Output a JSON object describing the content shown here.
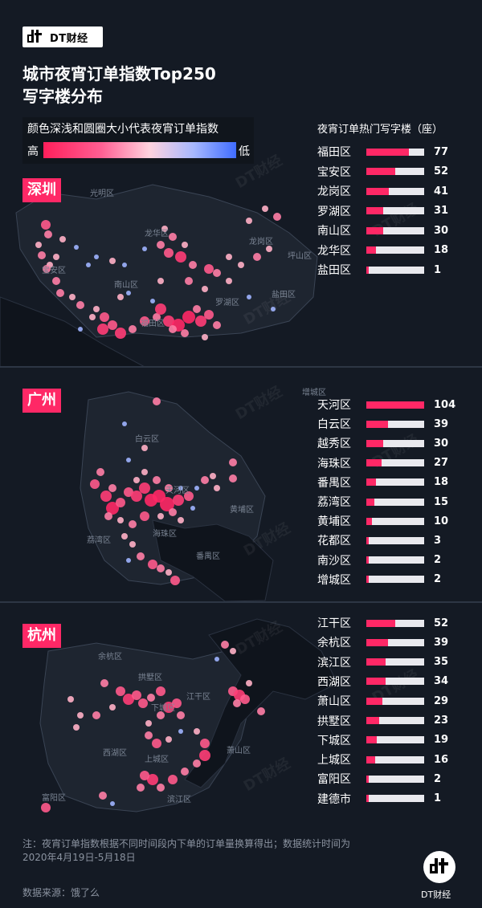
{
  "brand": {
    "logo_text": "DT财经",
    "bottom_text": "DT财经",
    "watermark": "DT财经"
  },
  "title": "城市夜宵订单指数Top250\n写字楼分布",
  "legend": {
    "title": "颜色深浅和圆圈大小代表夜宵订单指数",
    "high": "高",
    "low": "低"
  },
  "bars_title": "夜宵订单热门写字楼（座）",
  "colors": {
    "accent": "#ff2866",
    "background": "#141a24",
    "bar_track": "#e9e9ee"
  },
  "cities": [
    {
      "name": "深圳",
      "map_labels": [
        "光明区",
        "龙华区",
        "宝安区",
        "南山区",
        "福田区",
        "罗湖区",
        "龙岗区",
        "坪山区",
        "盐田区"
      ],
      "districts": [
        {
          "name": "福田区",
          "count": 77
        },
        {
          "name": "宝安区",
          "count": 52
        },
        {
          "name": "龙岗区",
          "count": 41
        },
        {
          "name": "罗湖区",
          "count": 31
        },
        {
          "name": "南山区",
          "count": 30
        },
        {
          "name": "龙华区",
          "count": 18
        },
        {
          "name": "盐田区",
          "count": 1
        }
      ]
    },
    {
      "name": "广州",
      "map_labels": [
        "增城区",
        "白云区",
        "天河区",
        "黄埔区",
        "荔湾区",
        "海珠区",
        "番禺区"
      ],
      "districts": [
        {
          "name": "天河区",
          "count": 104
        },
        {
          "name": "白云区",
          "count": 39
        },
        {
          "name": "越秀区",
          "count": 30
        },
        {
          "name": "海珠区",
          "count": 27
        },
        {
          "name": "番禺区",
          "count": 18
        },
        {
          "name": "荔湾区",
          "count": 15
        },
        {
          "name": "黄埔区",
          "count": 10
        },
        {
          "name": "花都区",
          "count": 3
        },
        {
          "name": "南沙区",
          "count": 2
        },
        {
          "name": "增城区",
          "count": 2
        }
      ]
    },
    {
      "name": "杭州",
      "map_labels": [
        "余杭区",
        "拱墅区",
        "江干区",
        "下城区",
        "西湖区",
        "萧山区",
        "上城区",
        "滨江区",
        "富阳区"
      ],
      "districts": [
        {
          "name": "江干区",
          "count": 52
        },
        {
          "name": "余杭区",
          "count": 39
        },
        {
          "name": "滨江区",
          "count": 35
        },
        {
          "name": "西湖区",
          "count": 34
        },
        {
          "name": "萧山区",
          "count": 29
        },
        {
          "name": "拱墅区",
          "count": 23
        },
        {
          "name": "下城区",
          "count": 19
        },
        {
          "name": "上城区",
          "count": 16
        },
        {
          "name": "富阳区",
          "count": 2
        },
        {
          "name": "建德市",
          "count": 1
        }
      ]
    }
  ],
  "bar_max": 104,
  "note": "注：夜宵订单指数根据不同时间段内下单的订单量换算得出；数据统计时间为2020年4月19日-5月18日",
  "source": "数据来源：饿了么"
}
